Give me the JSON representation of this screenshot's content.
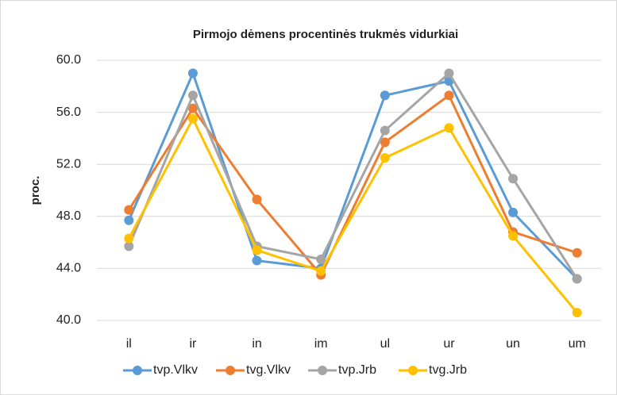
{
  "chart_data": {
    "type": "line",
    "title": "Pirmojo dėmens procentinės trukmės vidurkiai",
    "y_label": "proc.",
    "categories": [
      "il",
      "ir",
      "in",
      "im",
      "ul",
      "ur",
      "un",
      "um"
    ],
    "series": [
      {
        "name": "tvp.Vlkv",
        "color": "#5b9bd5",
        "values": [
          47.7,
          59.0,
          44.6,
          44.0,
          57.3,
          58.4,
          48.3,
          43.2
        ]
      },
      {
        "name": "tvg.Vlkv",
        "color": "#ed7d31",
        "values": [
          48.5,
          56.3,
          49.3,
          43.5,
          53.7,
          57.3,
          46.8,
          45.2
        ]
      },
      {
        "name": "tvp.Jrb",
        "color": "#a5a5a5",
        "values": [
          45.7,
          57.3,
          45.7,
          44.7,
          54.6,
          59.0,
          50.9,
          43.2
        ]
      },
      {
        "name": "tvg.Jrb",
        "color": "#ffc000",
        "values": [
          46.3,
          55.5,
          45.4,
          43.8,
          52.5,
          54.8,
          46.5,
          40.6
        ]
      }
    ],
    "ylim": [
      40,
      60
    ],
    "yticks": [
      {
        "value": 40,
        "label": "40.0"
      },
      {
        "value": 44,
        "label": "44.0"
      },
      {
        "value": 48,
        "label": "48.0"
      },
      {
        "value": 52,
        "label": "52.0"
      },
      {
        "value": 56,
        "label": "56.0"
      },
      {
        "value": 60,
        "label": "60.0"
      }
    ],
    "grid": true,
    "legend": "bottom"
  }
}
